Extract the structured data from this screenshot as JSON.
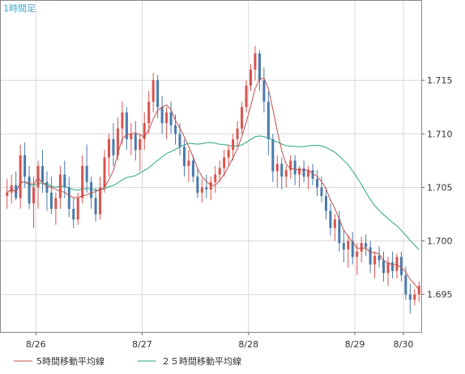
{
  "timeframe_label": "1時間足",
  "colors": {
    "up_candle": "#d9534f",
    "down_candle": "#4a7aab",
    "ma5": "#c0504d",
    "ma25": "#2aa876",
    "grid": "#d8d8d8",
    "axis": "#666666",
    "timeframe_text": "#3fa9c9"
  },
  "legend": [
    {
      "label": "5時間移動平均線",
      "color": "#c0504d"
    },
    {
      "label": "２５時間移動平均線",
      "color": "#2aa876"
    }
  ],
  "chart_data": {
    "type": "candlestick",
    "x_tick_labels": [
      "8/26",
      "8/27",
      "8/28",
      "8/29",
      "8/30"
    ],
    "y_tick_labels": [
      "1.695",
      "1.700",
      "1.705",
      "1.710",
      "1.715"
    ],
    "ylim": [
      1.6915,
      1.7225
    ],
    "grid": true,
    "legend_position": "bottom",
    "series": [
      {
        "name": "5時間移動平均線",
        "style": "line"
      },
      {
        "name": "２５時間移動平均線",
        "style": "line"
      }
    ],
    "ohlc": [
      [
        1.7042,
        1.7058,
        1.703,
        1.7045
      ],
      [
        1.7045,
        1.7062,
        1.7035,
        1.7052
      ],
      [
        1.7052,
        1.7065,
        1.7038,
        1.704
      ],
      [
        1.704,
        1.709,
        1.703,
        1.708
      ],
      [
        1.708,
        1.7092,
        1.705,
        1.706
      ],
      [
        1.706,
        1.707,
        1.703,
        1.7035
      ],
      [
        1.7035,
        1.706,
        1.7012,
        1.705
      ],
      [
        1.705,
        1.7075,
        1.703,
        1.707
      ],
      [
        1.707,
        1.7085,
        1.7045,
        1.7055
      ],
      [
        1.7055,
        1.7065,
        1.7028,
        1.7045
      ],
      [
        1.7045,
        1.706,
        1.7025,
        1.703
      ],
      [
        1.703,
        1.7045,
        1.7015,
        1.704
      ],
      [
        1.704,
        1.707,
        1.703,
        1.7062
      ],
      [
        1.7062,
        1.7075,
        1.704,
        1.705
      ],
      [
        1.705,
        1.706,
        1.7022,
        1.703
      ],
      [
        1.703,
        1.704,
        1.7012,
        1.702
      ],
      [
        1.702,
        1.7045,
        1.7015,
        1.704
      ],
      [
        1.704,
        1.708,
        1.7035,
        1.707
      ],
      [
        1.707,
        1.709,
        1.7045,
        1.7055
      ],
      [
        1.7055,
        1.706,
        1.703,
        1.704
      ],
      [
        1.704,
        1.705,
        1.7018,
        1.7025
      ],
      [
        1.7025,
        1.706,
        1.702,
        1.705
      ],
      [
        1.705,
        1.7085,
        1.7045,
        1.7078
      ],
      [
        1.7078,
        1.71,
        1.706,
        1.7095
      ],
      [
        1.7095,
        1.711,
        1.707,
        1.708
      ],
      [
        1.708,
        1.7115,
        1.7075,
        1.7105
      ],
      [
        1.7105,
        1.713,
        1.709,
        1.712
      ],
      [
        1.712,
        1.7125,
        1.7085,
        1.7095
      ],
      [
        1.7095,
        1.711,
        1.708,
        1.71
      ],
      [
        1.71,
        1.7112,
        1.7075,
        1.7085
      ],
      [
        1.7085,
        1.71,
        1.7065,
        1.7095
      ],
      [
        1.7095,
        1.712,
        1.7085,
        1.711
      ],
      [
        1.711,
        1.714,
        1.71,
        1.713
      ],
      [
        1.713,
        1.7157,
        1.712,
        1.715
      ],
      [
        1.715,
        1.7155,
        1.7115,
        1.7125
      ],
      [
        1.7125,
        1.7135,
        1.71,
        1.711
      ],
      [
        1.711,
        1.7125,
        1.7095,
        1.712
      ],
      [
        1.712,
        1.713,
        1.71,
        1.7108
      ],
      [
        1.7108,
        1.7118,
        1.709,
        1.71
      ],
      [
        1.71,
        1.711,
        1.708,
        1.7088
      ],
      [
        1.7088,
        1.7095,
        1.706,
        1.707
      ],
      [
        1.707,
        1.7085,
        1.7055,
        1.7075
      ],
      [
        1.7075,
        1.708,
        1.7055,
        1.706
      ],
      [
        1.706,
        1.7068,
        1.704,
        1.7045
      ],
      [
        1.7045,
        1.7058,
        1.7036,
        1.705
      ],
      [
        1.705,
        1.7062,
        1.704,
        1.7048
      ],
      [
        1.7048,
        1.706,
        1.7038,
        1.7055
      ],
      [
        1.7055,
        1.707,
        1.7045,
        1.7062
      ],
      [
        1.7062,
        1.7075,
        1.7055,
        1.7068
      ],
      [
        1.7068,
        1.7085,
        1.706,
        1.7078
      ],
      [
        1.7078,
        1.709,
        1.707,
        1.7085
      ],
      [
        1.7085,
        1.71,
        1.7075,
        1.7095
      ],
      [
        1.7095,
        1.7112,
        1.7088,
        1.7105
      ],
      [
        1.7105,
        1.713,
        1.71,
        1.7125
      ],
      [
        1.7125,
        1.715,
        1.712,
        1.7145
      ],
      [
        1.7145,
        1.7165,
        1.714,
        1.716
      ],
      [
        1.716,
        1.7182,
        1.715,
        1.7175
      ],
      [
        1.7175,
        1.7178,
        1.714,
        1.715
      ],
      [
        1.715,
        1.7162,
        1.712,
        1.713
      ],
      [
        1.713,
        1.714,
        1.708,
        1.7095
      ],
      [
        1.7095,
        1.71,
        1.7055,
        1.7065
      ],
      [
        1.7065,
        1.708,
        1.705,
        1.7072
      ],
      [
        1.7072,
        1.7078,
        1.7048,
        1.706
      ],
      [
        1.706,
        1.707,
        1.705,
        1.7066
      ],
      [
        1.7066,
        1.708,
        1.7058,
        1.7075
      ],
      [
        1.7075,
        1.708,
        1.7052,
        1.7062
      ],
      [
        1.7062,
        1.707,
        1.705,
        1.7068
      ],
      [
        1.7068,
        1.7075,
        1.7055,
        1.706
      ],
      [
        1.706,
        1.707,
        1.7048,
        1.7066
      ],
      [
        1.7066,
        1.7072,
        1.7052,
        1.7058
      ],
      [
        1.7058,
        1.7066,
        1.7042,
        1.705
      ],
      [
        1.705,
        1.706,
        1.7036,
        1.7042
      ],
      [
        1.7042,
        1.705,
        1.702,
        1.7028
      ],
      [
        1.7028,
        1.7035,
        1.7005,
        1.7012
      ],
      [
        1.7012,
        1.7025,
        1.7,
        1.702
      ],
      [
        1.702,
        1.7028,
        1.699,
        1.6998
      ],
      [
        1.6998,
        1.701,
        1.698,
        1.6992
      ],
      [
        1.6992,
        1.7005,
        1.6975,
        1.7
      ],
      [
        1.7,
        1.7008,
        1.6978,
        1.6985
      ],
      [
        1.6985,
        1.6998,
        1.6968,
        1.699
      ],
      [
        1.699,
        1.7004,
        1.698,
        1.6998
      ],
      [
        1.6998,
        1.7006,
        1.6986,
        1.6994
      ],
      [
        1.6994,
        1.7,
        1.697,
        1.6978
      ],
      [
        1.6978,
        1.699,
        1.6965,
        1.6986
      ],
      [
        1.6986,
        1.6995,
        1.6975,
        1.6982
      ],
      [
        1.6982,
        1.699,
        1.6962,
        1.697
      ],
      [
        1.697,
        1.6985,
        1.6958,
        1.698
      ],
      [
        1.698,
        1.699,
        1.6965,
        1.6972
      ],
      [
        1.6972,
        1.6988,
        1.6965,
        1.6985
      ],
      [
        1.6985,
        1.699,
        1.6962,
        1.6968
      ],
      [
        1.6968,
        1.6976,
        1.6945,
        1.695
      ],
      [
        1.695,
        1.696,
        1.6932,
        1.6945
      ],
      [
        1.6945,
        1.6955,
        1.694,
        1.695
      ],
      [
        1.695,
        1.6962,
        1.6943,
        1.6958
      ]
    ]
  }
}
